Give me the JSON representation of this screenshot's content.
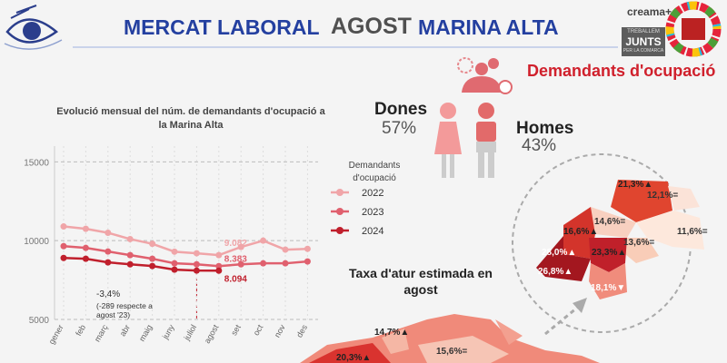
{
  "header": {
    "title_part1": "MERCAT LABORAL",
    "title_part2": "AGOST",
    "title_part3": "MARINA ALTA",
    "brand": "creama+",
    "badge_line1": "TREBALLEM",
    "badge_line2": "JUNTS",
    "badge_line3": "PER LA COMARCA",
    "section": "Demandants d'ocupació"
  },
  "gender": {
    "women_label": "Dones",
    "women_share": "57%",
    "men_label": "Homes",
    "men_share": "43%"
  },
  "map": {
    "title": "Taxa d'atur estimada en agost",
    "labels": [
      "14,7%▲",
      "20,3%▲",
      "15,6%=",
      "21,3%▲",
      "12,1%=",
      "14,6%=",
      "16,6%▲",
      "11,6%=",
      "13,6%=",
      "28,0%▲",
      "23,3%▲",
      "26,8%▲",
      "18,1%▼"
    ]
  },
  "chart_data": {
    "type": "line",
    "title": "Evolució mensual del núm. de demandants d'ocupació a la Marina Alta",
    "legend_title": "Demandants d'ocupació",
    "categories": [
      "gener",
      "feb",
      "març",
      "abr",
      "maig",
      "juny",
      "juliol",
      "agost",
      "set",
      "oct",
      "nov",
      "des"
    ],
    "series": [
      {
        "name": "2022",
        "color": "#f0a5a8",
        "values": [
          10900,
          10750,
          10500,
          10100,
          9800,
          9300,
          9200,
          9082,
          9600,
          10000,
          9430,
          9480
        ],
        "value_labels": [
          null,
          null,
          null,
          null,
          null,
          null,
          null,
          "9.082",
          null,
          null,
          null,
          null
        ]
      },
      {
        "name": "2023",
        "color": "#e0606e",
        "values": [
          9650,
          9540,
          9310,
          9080,
          8850,
          8560,
          8500,
          8383,
          8500,
          8560,
          8560,
          8680
        ],
        "value_labels": [
          null,
          null,
          null,
          null,
          null,
          null,
          null,
          "8.383",
          null,
          null,
          null,
          null
        ]
      },
      {
        "name": "2024",
        "color": "#c01f2c",
        "values": [
          8900,
          8850,
          8620,
          8500,
          8390,
          8160,
          8100,
          8094,
          null,
          null,
          null,
          null
        ],
        "value_labels": [
          null,
          null,
          null,
          null,
          null,
          null,
          null,
          "8.094",
          null,
          null,
          null,
          null
        ]
      }
    ],
    "ylim": [
      5000,
      16000
    ],
    "yticks": [
      5000,
      10000,
      15000
    ],
    "grid": true,
    "annotation": "-3,4%",
    "annotation_note": "(-289 respecte a agost '23)"
  }
}
